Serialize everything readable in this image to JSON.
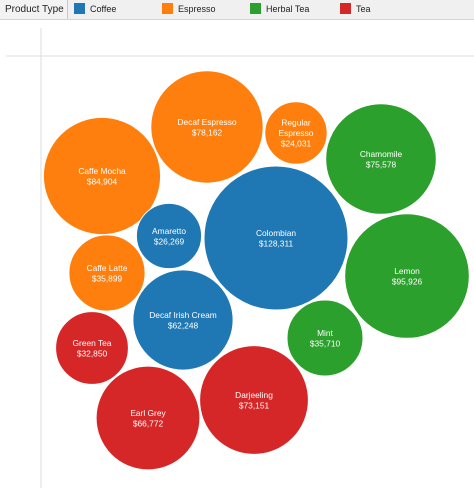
{
  "legend": {
    "title": "Product Type",
    "items": [
      {
        "label": "Coffee",
        "color": "#1f77b4"
      },
      {
        "label": "Espresso",
        "color": "#ff7f0e"
      },
      {
        "label": "Herbal Tea",
        "color": "#2ca02c"
      },
      {
        "label": "Tea",
        "color": "#d62728"
      }
    ]
  },
  "chart_data": {
    "type": "bubble",
    "legend_placement": "top",
    "series": [
      {
        "name": "Coffee",
        "color": "#1f77b4"
      },
      {
        "name": "Espresso",
        "color": "#ff7f0e"
      },
      {
        "name": "Herbal Tea",
        "color": "#2ca02c"
      },
      {
        "name": "Tea",
        "color": "#d62728"
      }
    ],
    "bubbles": [
      {
        "name": "Colombian",
        "value_label": "$128,311",
        "value": 128311,
        "category": "Coffee"
      },
      {
        "name": "Lemon",
        "value_label": "$95,926",
        "value": 95926,
        "category": "Herbal Tea"
      },
      {
        "name": "Caffe Mocha",
        "value_label": "$84,904",
        "value": 84904,
        "category": "Espresso"
      },
      {
        "name": "Decaf Espresso",
        "value_label": "$78,162",
        "value": 78162,
        "category": "Espresso"
      },
      {
        "name": "Chamomile",
        "value_label": "$75,578",
        "value": 75578,
        "category": "Herbal Tea"
      },
      {
        "name": "Darjeeling",
        "value_label": "$73,151",
        "value": 73151,
        "category": "Tea"
      },
      {
        "name": "Earl Grey",
        "value_label": "$66,772",
        "value": 66772,
        "category": "Tea"
      },
      {
        "name": "Decaf Irish Cream",
        "value_label": "$62,248",
        "value": 62248,
        "category": "Coffee"
      },
      {
        "name": "Caffe Latte",
        "value_label": "$35,899",
        "value": 35899,
        "category": "Espresso"
      },
      {
        "name": "Mint",
        "value_label": "$35,710",
        "value": 35710,
        "category": "Herbal Tea"
      },
      {
        "name": "Green Tea",
        "value_label": "$32,850",
        "value": 32850,
        "category": "Tea"
      },
      {
        "name": "Amaretto",
        "value_label": "$26,269",
        "value": 26269,
        "category": "Coffee"
      },
      {
        "name": "Regular Espresso",
        "value_label": "$24,031",
        "value": 24031,
        "category": "Espresso"
      }
    ]
  }
}
